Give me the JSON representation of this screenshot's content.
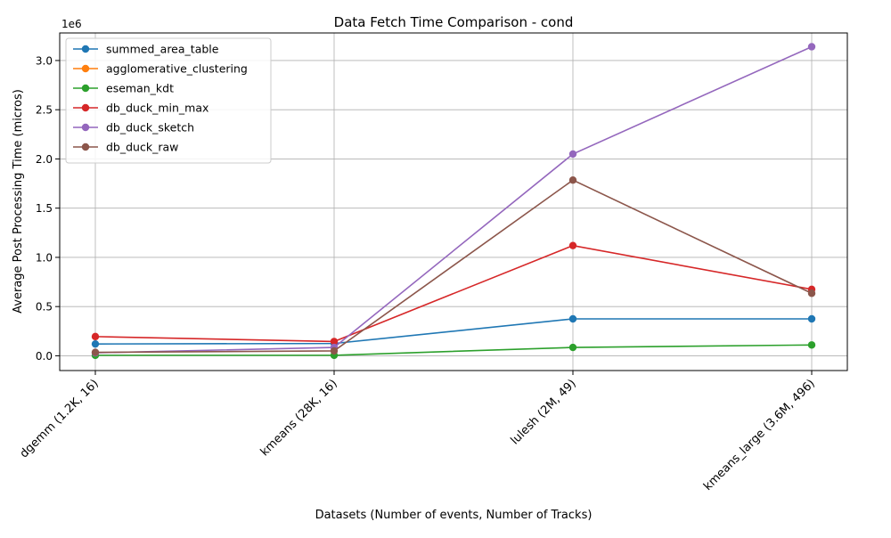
{
  "chart_data": {
    "type": "line",
    "title": "Data Fetch Time Comparison - cond",
    "xlabel": "Datasets (Number of events, Number of Tracks)",
    "ylabel": "Average Post Processing Time (micros)",
    "y_multiplier_label": "1e6",
    "categories": [
      "dgemm (1.2K, 16)",
      "kmeans (28K, 16)",
      "lulesh (2M, 49)",
      "kmeans_large (3.6M, 496)"
    ],
    "ylim": [
      -150000,
      3280000
    ],
    "y_ticks": [
      0,
      500000,
      1000000,
      1500000,
      2000000,
      2500000,
      3000000
    ],
    "y_tick_labels": [
      "0.0",
      "0.5",
      "1.0",
      "1.5",
      "2.0",
      "2.5",
      "3.0"
    ],
    "grid": true,
    "legend_position": "top-left",
    "series": [
      {
        "name": "summed_area_table",
        "color": "#1f77b4",
        "values": [
          120000,
          125000,
          375000,
          375000
        ]
      },
      {
        "name": "agglomerative_clustering",
        "color": "#ff7f0e",
        "values": [
          null,
          null,
          null,
          null
        ]
      },
      {
        "name": "eseman_kdt",
        "color": "#2ca02c",
        "values": [
          5000,
          5000,
          85000,
          110000
        ]
      },
      {
        "name": "db_duck_min_max",
        "color": "#d62728",
        "values": [
          195000,
          145000,
          1120000,
          675000
        ]
      },
      {
        "name": "db_duck_sketch",
        "color": "#9467bd",
        "values": [
          30000,
          85000,
          2050000,
          3140000
        ]
      },
      {
        "name": "db_duck_raw",
        "color": "#8c564b",
        "values": [
          35000,
          50000,
          1785000,
          635000
        ]
      }
    ]
  }
}
